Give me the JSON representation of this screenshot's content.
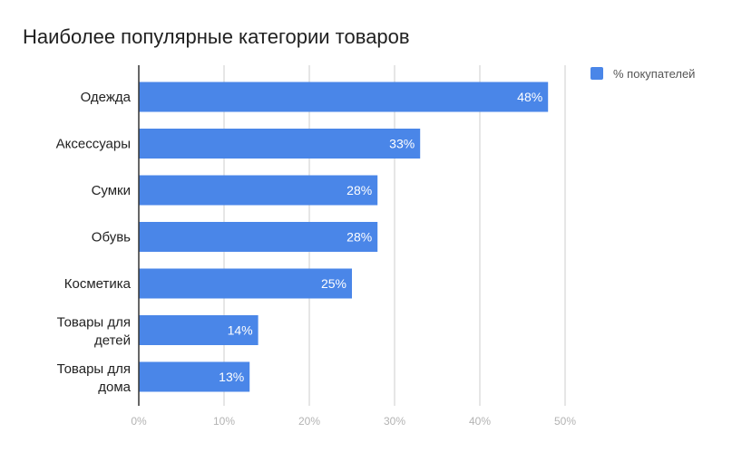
{
  "chart_data": {
    "type": "bar",
    "orientation": "horizontal",
    "title": "Наиболее популярные категории товаров",
    "categories": [
      [
        "Одежда"
      ],
      [
        "Аксессуары"
      ],
      [
        "Сумки"
      ],
      [
        "Обувь"
      ],
      [
        "Косметика"
      ],
      [
        "Товары для",
        "детей"
      ],
      [
        "Товары для",
        "дома"
      ]
    ],
    "series": [
      {
        "name": "% покупателей",
        "color": "#4a86e8",
        "values": [
          48,
          33,
          28,
          28,
          25,
          14,
          13
        ],
        "data_labels": [
          "48%",
          "33%",
          "28%",
          "28%",
          "25%",
          "14%",
          "13%"
        ]
      }
    ],
    "xlim": [
      0,
      50
    ],
    "x_ticks": [
      0,
      10,
      20,
      30,
      40,
      50
    ],
    "x_tick_labels": [
      "0%",
      "10%",
      "20%",
      "30%",
      "40%",
      "50%"
    ],
    "grid": "vertical",
    "legend_position": "top-right"
  }
}
